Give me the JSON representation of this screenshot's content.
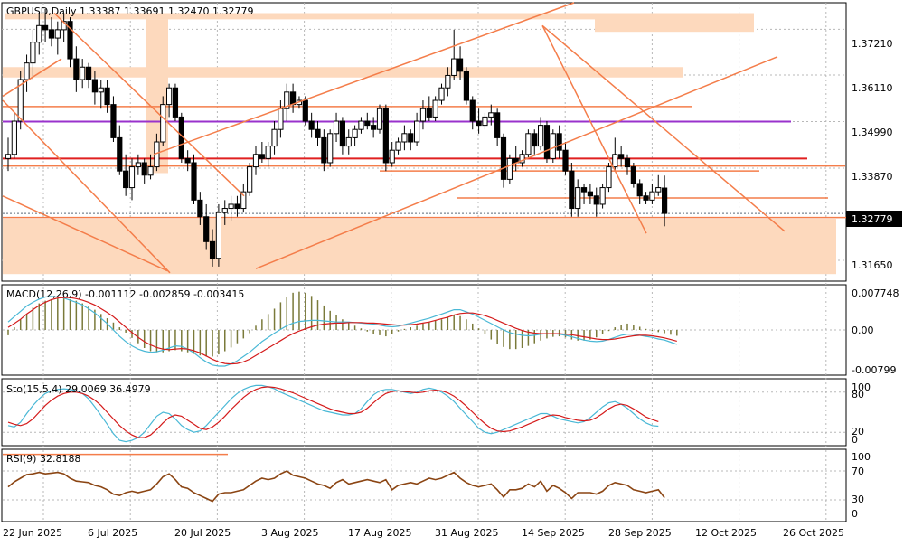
{
  "header": {
    "symbol_line": "GBPUSD,Daily",
    "ohlc": "1.33387 1.33691 1.32470 1.32779"
  },
  "colors": {
    "zone": "#fdd9bd",
    "trend": "#f47d4a",
    "red_level": "#e02020",
    "purple_level": "#9932cc",
    "macd_hist": "#7a7a3a",
    "macd_main": "#49b8d6",
    "macd_signal": "#d41a1a",
    "sto_main": "#49b8d6",
    "sto_signal": "#d41a1a",
    "rsi": "#8b4513",
    "rsi_ref": "#f47d4a"
  },
  "price_axis": {
    "ticks": [
      "1.37210",
      "1.36110",
      "1.34990",
      "1.33870",
      "1.32779",
      "1.31650"
    ],
    "current": "1.32779"
  },
  "date_axis": [
    "22 Jun 2025",
    "6 Jul 2025",
    "20 Jul 2025",
    "3 Aug 2025",
    "17 Aug 2025",
    "31 Aug 2025",
    "14 Sep 2025",
    "28 Sep 2025",
    "12 Oct 2025",
    "26 Oct 2025"
  ],
  "macd": {
    "label": "MACD(12,26,9) -0.001112 -0.002859 -0.003415",
    "ticks": [
      "0.007748",
      "0.00",
      "-0.00799"
    ]
  },
  "sto": {
    "label": "Sto(15,5,4) 29.0069 36.4979",
    "ticks": [
      "100",
      "80",
      "20",
      "0"
    ]
  },
  "rsi": {
    "label": "RSI(9) 32.8188",
    "ticks": [
      "100",
      "70",
      "30",
      "0"
    ]
  },
  "chart_data": {
    "type": "candlestick",
    "symbol": "GBPUSD",
    "timeframe": "Daily",
    "ylim": [
      1.3115,
      1.3785
    ],
    "candles": [
      [
        1.341,
        1.346,
        1.338,
        1.342
      ],
      [
        1.342,
        1.352,
        1.341,
        1.35
      ],
      [
        1.35,
        1.362,
        1.348,
        1.36
      ],
      [
        1.36,
        1.366,
        1.357,
        1.364
      ],
      [
        1.364,
        1.372,
        1.36,
        1.369
      ],
      [
        1.369,
        1.376,
        1.366,
        1.373
      ],
      [
        1.373,
        1.377,
        1.369,
        1.372
      ],
      [
        1.372,
        1.375,
        1.368,
        1.37
      ],
      [
        1.37,
        1.374,
        1.366,
        1.372
      ],
      [
        1.372,
        1.376,
        1.369,
        1.374
      ],
      [
        1.374,
        1.375,
        1.363,
        1.365
      ],
      [
        1.365,
        1.368,
        1.357,
        1.36
      ],
      [
        1.36,
        1.365,
        1.358,
        1.363
      ],
      [
        1.363,
        1.364,
        1.358,
        1.36
      ],
      [
        1.36,
        1.362,
        1.354,
        1.357
      ],
      [
        1.357,
        1.36,
        1.353,
        1.358
      ],
      [
        1.358,
        1.36,
        1.352,
        1.354
      ],
      [
        1.354,
        1.356,
        1.345,
        1.346
      ],
      [
        1.346,
        1.349,
        1.337,
        1.338
      ],
      [
        1.338,
        1.342,
        1.332,
        1.334
      ],
      [
        1.334,
        1.341,
        1.331,
        1.339
      ],
      [
        1.339,
        1.342,
        1.337,
        1.34
      ],
      [
        1.34,
        1.341,
        1.335,
        1.337
      ],
      [
        1.337,
        1.342,
        1.336,
        1.339
      ],
      [
        1.339,
        1.347,
        1.338,
        1.345
      ],
      [
        1.345,
        1.356,
        1.344,
        1.354
      ],
      [
        1.354,
        1.359,
        1.351,
        1.358
      ],
      [
        1.358,
        1.359,
        1.35,
        1.351
      ],
      [
        1.351,
        1.352,
        1.34,
        1.341
      ],
      [
        1.341,
        1.343,
        1.338,
        1.34
      ],
      [
        1.34,
        1.342,
        1.33,
        1.331
      ],
      [
        1.331,
        1.333,
        1.325,
        1.327
      ],
      [
        1.327,
        1.33,
        1.319,
        1.321
      ],
      [
        1.321,
        1.324,
        1.315,
        1.317
      ],
      [
        1.317,
        1.33,
        1.315,
        1.328
      ],
      [
        1.328,
        1.331,
        1.325,
        1.329
      ],
      [
        1.329,
        1.332,
        1.326,
        1.33
      ],
      [
        1.33,
        1.332,
        1.327,
        1.329
      ],
      [
        1.329,
        1.335,
        1.328,
        1.333
      ],
      [
        1.333,
        1.34,
        1.332,
        1.339
      ],
      [
        1.339,
        1.344,
        1.337,
        1.342
      ],
      [
        1.342,
        1.345,
        1.34,
        1.341
      ],
      [
        1.341,
        1.345,
        1.339,
        1.344
      ],
      [
        1.344,
        1.35,
        1.342,
        1.348
      ],
      [
        1.348,
        1.355,
        1.346,
        1.353
      ],
      [
        1.353,
        1.359,
        1.35,
        1.357
      ],
      [
        1.357,
        1.359,
        1.352,
        1.354
      ],
      [
        1.354,
        1.356,
        1.353,
        1.355
      ],
      [
        1.355,
        1.356,
        1.349,
        1.35
      ],
      [
        1.35,
        1.352,
        1.346,
        1.348
      ],
      [
        1.348,
        1.35,
        1.344,
        1.346
      ],
      [
        1.346,
        1.348,
        1.338,
        1.34
      ],
      [
        1.34,
        1.348,
        1.339,
        1.347
      ],
      [
        1.347,
        1.352,
        1.345,
        1.35
      ],
      [
        1.35,
        1.351,
        1.342,
        1.344
      ],
      [
        1.344,
        1.348,
        1.342,
        1.346
      ],
      [
        1.346,
        1.349,
        1.344,
        1.348
      ],
      [
        1.348,
        1.351,
        1.347,
        1.35
      ],
      [
        1.35,
        1.352,
        1.348,
        1.349
      ],
      [
        1.349,
        1.351,
        1.346,
        1.348
      ],
      [
        1.348,
        1.354,
        1.347,
        1.353
      ],
      [
        1.353,
        1.354,
        1.338,
        1.34
      ],
      [
        1.34,
        1.345,
        1.339,
        1.343
      ],
      [
        1.343,
        1.346,
        1.342,
        1.345
      ],
      [
        1.345,
        1.349,
        1.343,
        1.347
      ],
      [
        1.347,
        1.348,
        1.343,
        1.345
      ],
      [
        1.345,
        1.352,
        1.344,
        1.35
      ],
      [
        1.35,
        1.355,
        1.348,
        1.353
      ],
      [
        1.353,
        1.356,
        1.35,
        1.351
      ],
      [
        1.351,
        1.356,
        1.35,
        1.355
      ],
      [
        1.355,
        1.359,
        1.354,
        1.358
      ],
      [
        1.358,
        1.363,
        1.356,
        1.361
      ],
      [
        1.361,
        1.372,
        1.36,
        1.365
      ],
      [
        1.365,
        1.368,
        1.36,
        1.362
      ],
      [
        1.362,
        1.363,
        1.354,
        1.355
      ],
      [
        1.355,
        1.356,
        1.348,
        1.35
      ],
      [
        1.35,
        1.353,
        1.347,
        1.349
      ],
      [
        1.349,
        1.352,
        1.348,
        1.351
      ],
      [
        1.351,
        1.354,
        1.349,
        1.352
      ],
      [
        1.352,
        1.353,
        1.344,
        1.346
      ],
      [
        1.346,
        1.347,
        1.334,
        1.336
      ],
      [
        1.336,
        1.342,
        1.335,
        1.341
      ],
      [
        1.341,
        1.344,
        1.338,
        1.34
      ],
      [
        1.34,
        1.343,
        1.339,
        1.342
      ],
      [
        1.342,
        1.348,
        1.341,
        1.347
      ],
      [
        1.347,
        1.348,
        1.342,
        1.344
      ],
      [
        1.344,
        1.351,
        1.343,
        1.349
      ],
      [
        1.349,
        1.35,
        1.34,
        1.341
      ],
      [
        1.341,
        1.348,
        1.34,
        1.347
      ],
      [
        1.347,
        1.349,
        1.341,
        1.343
      ],
      [
        1.343,
        1.345,
        1.337,
        1.338
      ],
      [
        1.338,
        1.34,
        1.327,
        1.329
      ],
      [
        1.329,
        1.336,
        1.327,
        1.334
      ],
      [
        1.334,
        1.335,
        1.33,
        1.333
      ],
      [
        1.333,
        1.335,
        1.33,
        1.332
      ],
      [
        1.332,
        1.334,
        1.327,
        1.33
      ],
      [
        1.33,
        1.335,
        1.329,
        1.334
      ],
      [
        1.334,
        1.34,
        1.333,
        1.339
      ],
      [
        1.339,
        1.346,
        1.338,
        1.342
      ],
      [
        1.342,
        1.344,
        1.339,
        1.341
      ],
      [
        1.341,
        1.342,
        1.337,
        1.339
      ],
      [
        1.339,
        1.34,
        1.334,
        1.335
      ],
      [
        1.335,
        1.336,
        1.33,
        1.332
      ],
      [
        1.332,
        1.333,
        1.33,
        1.331
      ],
      [
        1.331,
        1.335,
        1.33,
        1.333
      ],
      [
        1.333,
        1.337,
        1.332,
        1.334
      ],
      [
        1.3339,
        1.3369,
        1.3247,
        1.3278
      ]
    ],
    "levels": [
      1.3499,
      1.341
    ],
    "macd": {
      "ylim": [
        -0.0085,
        0.0085
      ],
      "histogram": [
        -0.001,
        0.0005,
        0.002,
        0.003,
        0.0042,
        0.005,
        0.0055,
        0.0058,
        0.006,
        0.006,
        0.0058,
        0.0055,
        0.005,
        0.0044,
        0.0038,
        0.003,
        0.0022,
        0.0014,
        0.0005,
        -0.0005,
        -0.0015,
        -0.0025,
        -0.0034,
        -0.004,
        -0.0042,
        -0.0042,
        -0.004,
        -0.0038,
        -0.004,
        -0.0042,
        -0.0045,
        -0.0048,
        -0.005,
        -0.005,
        -0.0046,
        -0.004,
        -0.0033,
        -0.0025,
        -0.0016,
        -0.0006,
        0.0008,
        0.002,
        0.003,
        0.004,
        0.0052,
        0.0062,
        0.007,
        0.0072,
        0.007,
        0.0064,
        0.0056,
        0.0046,
        0.0036,
        0.0028,
        0.002,
        0.0014,
        0.0008,
        0.0003,
        -0.0003,
        -0.0008,
        -0.001,
        -0.0012,
        -0.0008,
        -0.0003,
        0.0002,
        0.0005,
        0.0008,
        0.0012,
        0.0015,
        0.0018,
        0.002,
        0.0024,
        0.0028,
        0.0026,
        0.002,
        0.0012,
        0.0003,
        -0.0008,
        -0.0018,
        -0.0026,
        -0.0032,
        -0.0036,
        -0.0036,
        -0.0034,
        -0.003,
        -0.0025,
        -0.002,
        -0.0016,
        -0.0013,
        -0.0012,
        -0.0014,
        -0.0018,
        -0.002,
        -0.002,
        -0.0018,
        -0.0014,
        -0.0008,
        -0.0002,
        0.0005,
        0.001,
        0.0012,
        0.001,
        0.0006,
        0.0002,
        -0.0002,
        -0.0004,
        -0.0006,
        -0.0009,
        -0.0011
      ],
      "main": [
        0.0015,
        0.0025,
        0.0035,
        0.0045,
        0.0052,
        0.0058,
        0.0062,
        0.0063,
        0.0062,
        0.006,
        0.0056,
        0.0052,
        0.0047,
        0.004,
        0.0032,
        0.0022,
        0.0012,
        0.0,
        -0.0012,
        -0.0022,
        -0.003,
        -0.0036,
        -0.004,
        -0.0042,
        -0.0041,
        -0.0038,
        -0.0034,
        -0.003,
        -0.0031,
        -0.0036,
        -0.0043,
        -0.0052,
        -0.006,
        -0.0066,
        -0.0068,
        -0.0068,
        -0.0064,
        -0.0058,
        -0.005,
        -0.0042,
        -0.0032,
        -0.0022,
        -0.0014,
        -0.0006,
        0.0001,
        0.0008,
        0.0013,
        0.0016,
        0.0017,
        0.0018,
        0.0018,
        0.0017,
        0.0016,
        0.0015,
        0.0015,
        0.0015,
        0.0014,
        0.0013,
        0.0012,
        0.0011,
        0.0009,
        0.0007,
        0.0006,
        0.0007,
        0.001,
        0.0013,
        0.0016,
        0.0019,
        0.0022,
        0.0026,
        0.003,
        0.0034,
        0.0038,
        0.0038,
        0.0034,
        0.003,
        0.0024,
        0.0018,
        0.0012,
        0.0006,
        0.0,
        -0.0005,
        -0.0008,
        -0.001,
        -0.0011,
        -0.001,
        -0.0008,
        -0.0007,
        -0.0007,
        -0.0008,
        -0.001,
        -0.0013,
        -0.0016,
        -0.0019,
        -0.0021,
        -0.0022,
        -0.0021,
        -0.0018,
        -0.0014,
        -0.001,
        -0.0008,
        -0.0008,
        -0.001,
        -0.0012,
        -0.0014,
        -0.0017,
        -0.0019,
        -0.0023,
        -0.0027
      ],
      "signal": [
        0.0005,
        0.0012,
        0.002,
        0.003,
        0.0038,
        0.0046,
        0.0052,
        0.0057,
        0.006,
        0.0061,
        0.0061,
        0.0059,
        0.0056,
        0.0052,
        0.0047,
        0.004,
        0.0033,
        0.0025,
        0.0015,
        0.0005,
        -0.0005,
        -0.0014,
        -0.0022,
        -0.0028,
        -0.0033,
        -0.0036,
        -0.0037,
        -0.0036,
        -0.0035,
        -0.0036,
        -0.0039,
        -0.0043,
        -0.0049,
        -0.0055,
        -0.006,
        -0.0063,
        -0.0064,
        -0.0063,
        -0.006,
        -0.0055,
        -0.0048,
        -0.0041,
        -0.0034,
        -0.0027,
        -0.002,
        -0.0013,
        -0.0007,
        -0.0002,
        0.0002,
        0.0006,
        0.0009,
        0.0011,
        0.0012,
        0.0013,
        0.0013,
        0.0014,
        0.0014,
        0.0014,
        0.0013,
        0.0013,
        0.0012,
        0.0011,
        0.001,
        0.0009,
        0.0009,
        0.001,
        0.0011,
        0.0013,
        0.0015,
        0.0018,
        0.0021,
        0.0024,
        0.0028,
        0.0031,
        0.0032,
        0.0032,
        0.003,
        0.0027,
        0.0023,
        0.0018,
        0.0013,
        0.0008,
        0.0003,
        -0.0001,
        -0.0004,
        -0.0006,
        -0.0007,
        -0.0007,
        -0.0007,
        -0.0007,
        -0.0008,
        -0.0009,
        -0.0011,
        -0.0013,
        -0.0015,
        -0.0017,
        -0.0018,
        -0.0018,
        -0.0017,
        -0.0015,
        -0.0013,
        -0.0011,
        -0.001,
        -0.001,
        -0.0011,
        -0.0013,
        -0.0015,
        -0.0018,
        -0.0021
      ]
    },
    "stochastic": {
      "ylim": [
        0,
        100
      ],
      "main": [
        30,
        28,
        35,
        48,
        60,
        70,
        78,
        82,
        84,
        85,
        84,
        82,
        78,
        70,
        58,
        45,
        32,
        18,
        8,
        6,
        8,
        12,
        20,
        32,
        44,
        50,
        48,
        40,
        30,
        24,
        20,
        22,
        30,
        40,
        50,
        60,
        70,
        78,
        84,
        88,
        90,
        90,
        88,
        85,
        80,
        76,
        72,
        68,
        64,
        60,
        56,
        52,
        50,
        48,
        46,
        46,
        48,
        55,
        66,
        76,
        82,
        84,
        84,
        82,
        80,
        78,
        80,
        84,
        86,
        84,
        80,
        74,
        66,
        56,
        46,
        36,
        26,
        20,
        18,
        20,
        24,
        28,
        32,
        36,
        40,
        44,
        48,
        48,
        44,
        40,
        38,
        36,
        34,
        36,
        42,
        50,
        58,
        64,
        66,
        62,
        56,
        48,
        40,
        34,
        30,
        29
      ],
      "signal": [
        35,
        32,
        30,
        33,
        40,
        50,
        60,
        68,
        74,
        78,
        80,
        80,
        78,
        74,
        68,
        60,
        50,
        40,
        30,
        22,
        16,
        12,
        12,
        16,
        24,
        34,
        42,
        46,
        44,
        38,
        32,
        26,
        24,
        28,
        35,
        44,
        54,
        63,
        72,
        79,
        84,
        87,
        88,
        87,
        85,
        82,
        79,
        75,
        71,
        67,
        63,
        59,
        55,
        52,
        50,
        48,
        48,
        50,
        56,
        64,
        72,
        78,
        81,
        82,
        81,
        80,
        79,
        80,
        82,
        83,
        82,
        79,
        74,
        67,
        59,
        50,
        41,
        33,
        26,
        22,
        21,
        22,
        25,
        28,
        32,
        36,
        40,
        44,
        46,
        45,
        42,
        40,
        38,
        37,
        38,
        42,
        48,
        55,
        60,
        62,
        60,
        55,
        49,
        43,
        39,
        36
      ]
    },
    "rsi_series": {
      "ylim": [
        0,
        100
      ],
      "values": [
        48,
        55,
        60,
        65,
        66,
        68,
        66,
        67,
        68,
        66,
        60,
        56,
        55,
        54,
        50,
        48,
        44,
        38,
        36,
        40,
        42,
        40,
        42,
        44,
        52,
        62,
        66,
        58,
        48,
        46,
        40,
        36,
        32,
        28,
        38,
        40,
        40,
        42,
        44,
        50,
        56,
        60,
        58,
        60,
        66,
        70,
        64,
        62,
        60,
        56,
        52,
        50,
        46,
        54,
        58,
        52,
        54,
        56,
        58,
        56,
        54,
        58,
        44,
        50,
        52,
        54,
        52,
        56,
        60,
        58,
        60,
        64,
        68,
        60,
        54,
        50,
        48,
        50,
        52,
        44,
        34,
        44,
        44,
        46,
        52,
        48,
        56,
        42,
        50,
        46,
        40,
        32,
        40,
        40,
        40,
        38,
        42,
        50,
        54,
        52,
        50,
        44,
        42,
        40,
        42,
        44,
        33
      ],
      "reference_level": 93
    }
  }
}
